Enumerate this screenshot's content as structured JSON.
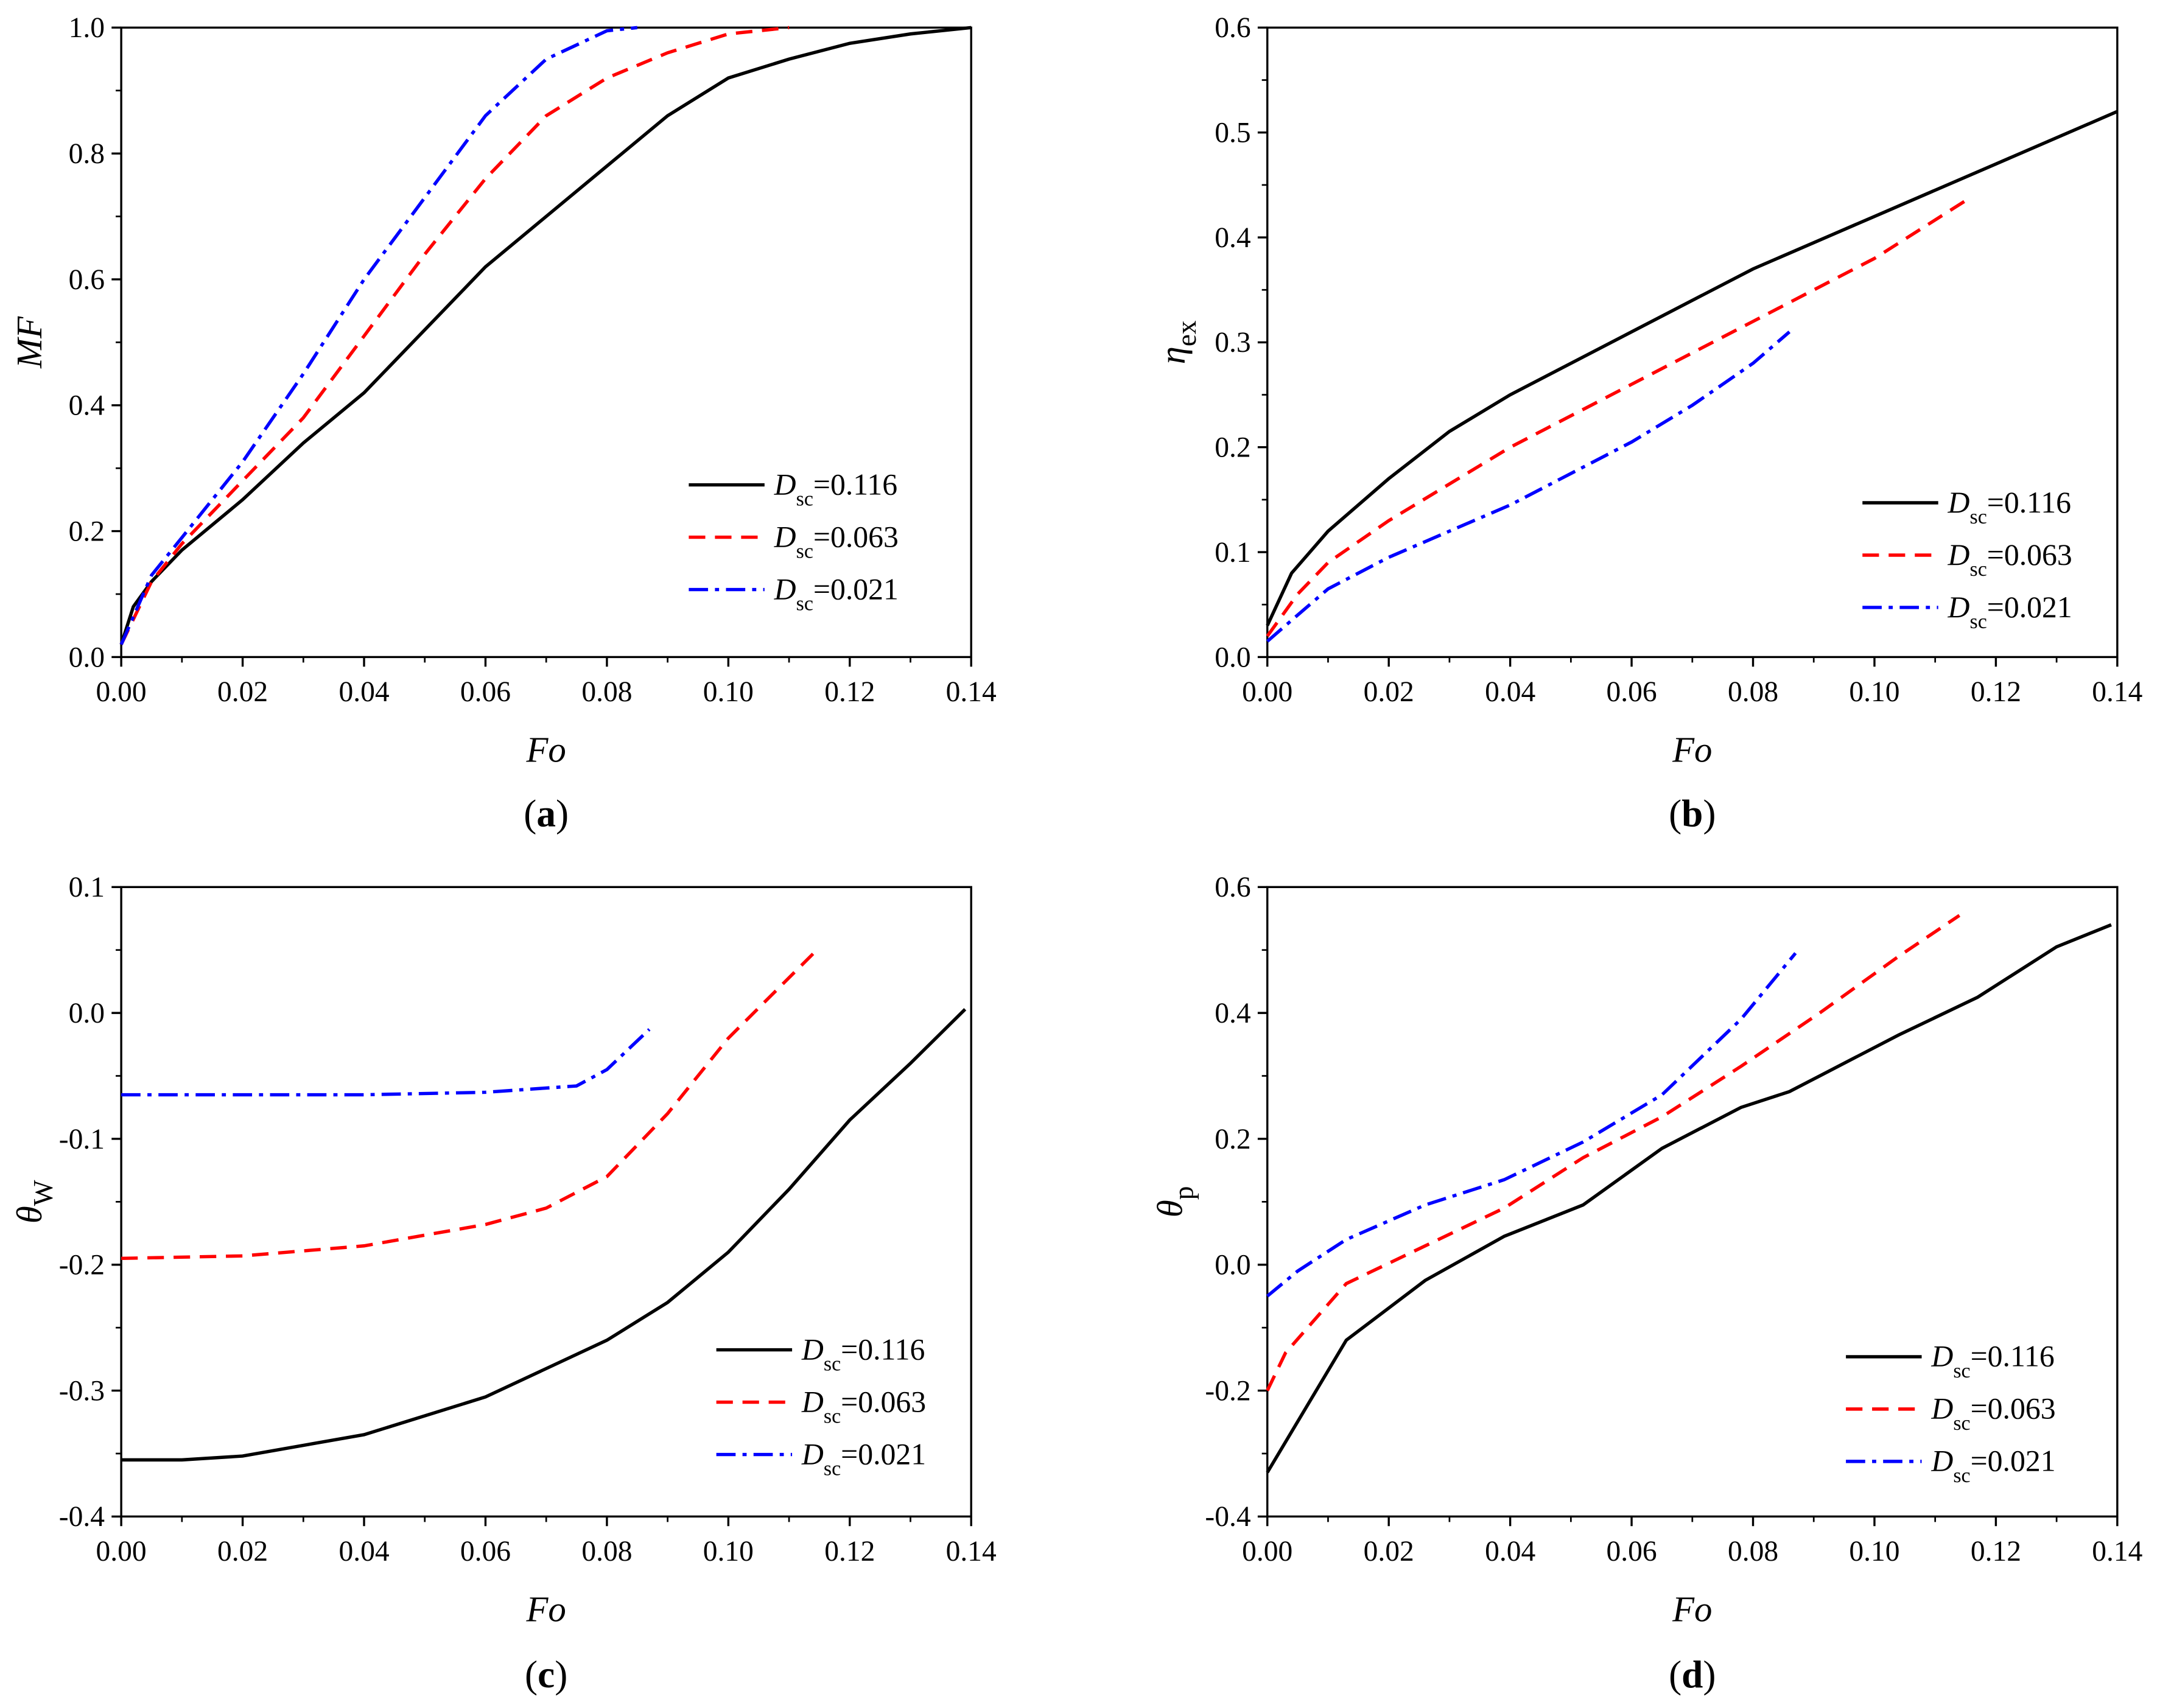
{
  "chart_data": [
    {
      "type": "line",
      "panel_label": "a",
      "xlabel": "Fo",
      "ylabel": "MF",
      "xlim": [
        0,
        0.14
      ],
      "ylim": [
        0,
        1.0
      ],
      "xticks": [
        "0.00",
        "0.02",
        "0.04",
        "0.06",
        "0.08",
        "0.10",
        "0.12",
        "0.14"
      ],
      "yticks": [
        "0.0",
        "0.2",
        "0.4",
        "0.6",
        "0.8",
        "1.0"
      ],
      "legend": "bottom-right",
      "series": [
        {
          "name": "Dsc=0.116",
          "label_main": "D",
          "label_sub": "sc",
          "label_val": "=0.116",
          "color": "#000000",
          "dash": "solid",
          "x": [
            0,
            0.002,
            0.005,
            0.01,
            0.02,
            0.03,
            0.04,
            0.05,
            0.06,
            0.07,
            0.08,
            0.09,
            0.1,
            0.11,
            0.12,
            0.13,
            0.14
          ],
          "y": [
            0.02,
            0.08,
            0.12,
            0.17,
            0.25,
            0.34,
            0.42,
            0.52,
            0.62,
            0.7,
            0.78,
            0.86,
            0.92,
            0.95,
            0.975,
            0.99,
            1.0
          ]
        },
        {
          "name": "Dsc=0.063",
          "label_main": "D",
          "label_sub": "sc",
          "label_val": "=0.063",
          "color": "#ff0000",
          "dash": "dash",
          "x": [
            0,
            0.005,
            0.01,
            0.02,
            0.03,
            0.04,
            0.05,
            0.06,
            0.07,
            0.08,
            0.09,
            0.1,
            0.11
          ],
          "y": [
            0.02,
            0.12,
            0.18,
            0.28,
            0.38,
            0.51,
            0.64,
            0.76,
            0.86,
            0.92,
            0.96,
            0.99,
            1.0
          ]
        },
        {
          "name": "Dsc=0.021",
          "label_main": "D",
          "label_sub": "sc",
          "label_val": "=0.021",
          "color": "#0000ff",
          "dash": "dashdot",
          "x": [
            0,
            0.005,
            0.01,
            0.02,
            0.03,
            0.04,
            0.05,
            0.06,
            0.07,
            0.08,
            0.085
          ],
          "y": [
            0.02,
            0.13,
            0.19,
            0.31,
            0.45,
            0.6,
            0.73,
            0.86,
            0.95,
            0.995,
            1.0
          ]
        }
      ]
    },
    {
      "type": "line",
      "panel_label": "b",
      "xlabel": "Fo",
      "ylabel": "η",
      "ylabel_sub": "ex",
      "xlim": [
        0,
        0.14
      ],
      "ylim": [
        0,
        0.6
      ],
      "xticks": [
        "0.00",
        "0.02",
        "0.04",
        "0.06",
        "0.08",
        "0.10",
        "0.12",
        "0.14"
      ],
      "yticks": [
        "0.0",
        "0.1",
        "0.2",
        "0.3",
        "0.4",
        "0.5",
        "0.6"
      ],
      "legend": "bottom-right",
      "series": [
        {
          "name": "Dsc=0.116",
          "label_main": "D",
          "label_sub": "sc",
          "label_val": "=0.116",
          "color": "#000000",
          "dash": "solid",
          "x": [
            0,
            0.004,
            0.01,
            0.02,
            0.03,
            0.04,
            0.06,
            0.08,
            0.1,
            0.12,
            0.14
          ],
          "y": [
            0.03,
            0.08,
            0.12,
            0.17,
            0.215,
            0.25,
            0.31,
            0.37,
            0.42,
            0.47,
            0.52
          ]
        },
        {
          "name": "Dsc=0.063",
          "label_main": "D",
          "label_sub": "sc",
          "label_val": "=0.063",
          "color": "#ff0000",
          "dash": "dash",
          "x": [
            0,
            0.005,
            0.01,
            0.02,
            0.04,
            0.06,
            0.08,
            0.1,
            0.115
          ],
          "y": [
            0.02,
            0.06,
            0.09,
            0.13,
            0.2,
            0.26,
            0.32,
            0.38,
            0.435
          ]
        },
        {
          "name": "Dsc=0.021",
          "label_main": "D",
          "label_sub": "sc",
          "label_val": "=0.021",
          "color": "#0000ff",
          "dash": "dashdot",
          "x": [
            0,
            0.005,
            0.01,
            0.02,
            0.04,
            0.06,
            0.07,
            0.08,
            0.086
          ],
          "y": [
            0.015,
            0.04,
            0.065,
            0.095,
            0.145,
            0.205,
            0.24,
            0.28,
            0.31
          ]
        }
      ]
    },
    {
      "type": "line",
      "panel_label": "c",
      "xlabel": "Fo",
      "ylabel": "θ",
      "ylabel_sub": "W",
      "xlim": [
        0,
        0.14
      ],
      "ylim": [
        -0.4,
        0.1
      ],
      "xticks": [
        "0.00",
        "0.02",
        "0.04",
        "0.06",
        "0.08",
        "0.10",
        "0.12",
        "0.14"
      ],
      "yticks": [
        "-0.4",
        "-0.3",
        "-0.2",
        "-0.1",
        "0.0",
        "0.1"
      ],
      "legend": "bottom-right",
      "series": [
        {
          "name": "Dsc=0.116",
          "label_main": "D",
          "label_sub": "sc",
          "label_val": "=0.116",
          "color": "#000000",
          "dash": "solid",
          "x": [
            0,
            0.01,
            0.02,
            0.04,
            0.06,
            0.08,
            0.09,
            0.1,
            0.11,
            0.12,
            0.13,
            0.139
          ],
          "y": [
            -0.355,
            -0.355,
            -0.352,
            -0.335,
            -0.305,
            -0.26,
            -0.23,
            -0.19,
            -0.14,
            -0.085,
            -0.04,
            0.003
          ]
        },
        {
          "name": "Dsc=0.063",
          "label_main": "D",
          "label_sub": "sc",
          "label_val": "=0.063",
          "color": "#ff0000",
          "dash": "dash",
          "x": [
            0,
            0.02,
            0.04,
            0.06,
            0.07,
            0.08,
            0.09,
            0.1,
            0.115
          ],
          "y": [
            -0.195,
            -0.193,
            -0.185,
            -0.168,
            -0.155,
            -0.13,
            -0.08,
            -0.02,
            0.052
          ]
        },
        {
          "name": "Dsc=0.021",
          "label_main": "D",
          "label_sub": "sc",
          "label_val": "=0.021",
          "color": "#0000ff",
          "dash": "dashdot",
          "x": [
            0,
            0.04,
            0.06,
            0.075,
            0.08,
            0.087
          ],
          "y": [
            -0.065,
            -0.065,
            -0.063,
            -0.058,
            -0.045,
            -0.013
          ]
        }
      ]
    },
    {
      "type": "line",
      "panel_label": "d",
      "xlabel": "Fo",
      "ylabel": "θ",
      "ylabel_sub": "p",
      "xlim": [
        0,
        0.14
      ],
      "ylim": [
        -0.4,
        0.6
      ],
      "xticks": [
        "0.00",
        "0.02",
        "0.04",
        "0.06",
        "0.08",
        "0.10",
        "0.12",
        "0.14"
      ],
      "yticks": [
        "-0.4",
        "-0.2",
        "0.0",
        "0.2",
        "0.4",
        "0.6"
      ],
      "legend": "bottom-right",
      "series": [
        {
          "name": "Dsc=0.116",
          "label_main": "D",
          "label_sub": "sc",
          "label_val": "=0.116",
          "color": "#000000",
          "dash": "solid",
          "x": [
            0,
            0.013,
            0.026,
            0.039,
            0.052,
            0.065,
            0.078,
            0.086,
            0.091,
            0.104,
            0.117,
            0.13,
            0.139
          ],
          "y": [
            -0.33,
            -0.12,
            -0.025,
            0.045,
            0.095,
            0.185,
            0.25,
            0.275,
            0.3,
            0.365,
            0.425,
            0.505,
            0.54
          ]
        },
        {
          "name": "Dsc=0.063",
          "label_main": "D",
          "label_sub": "sc",
          "label_val": "=0.063",
          "color": "#ff0000",
          "dash": "dash",
          "x": [
            0,
            0.003,
            0.013,
            0.026,
            0.039,
            0.052,
            0.065,
            0.078,
            0.091,
            0.104,
            0.114
          ],
          "y": [
            -0.2,
            -0.14,
            -0.03,
            0.03,
            0.09,
            0.17,
            0.235,
            0.315,
            0.4,
            0.49,
            0.555
          ]
        },
        {
          "name": "Dsc=0.021",
          "label_main": "D",
          "label_sub": "sc",
          "label_val": "=0.021",
          "color": "#0000ff",
          "dash": "dashdot",
          "x": [
            0,
            0.005,
            0.013,
            0.026,
            0.039,
            0.052,
            0.065,
            0.078,
            0.087
          ],
          "y": [
            -0.05,
            -0.01,
            0.04,
            0.095,
            0.135,
            0.195,
            0.27,
            0.39,
            0.495
          ]
        }
      ]
    }
  ]
}
